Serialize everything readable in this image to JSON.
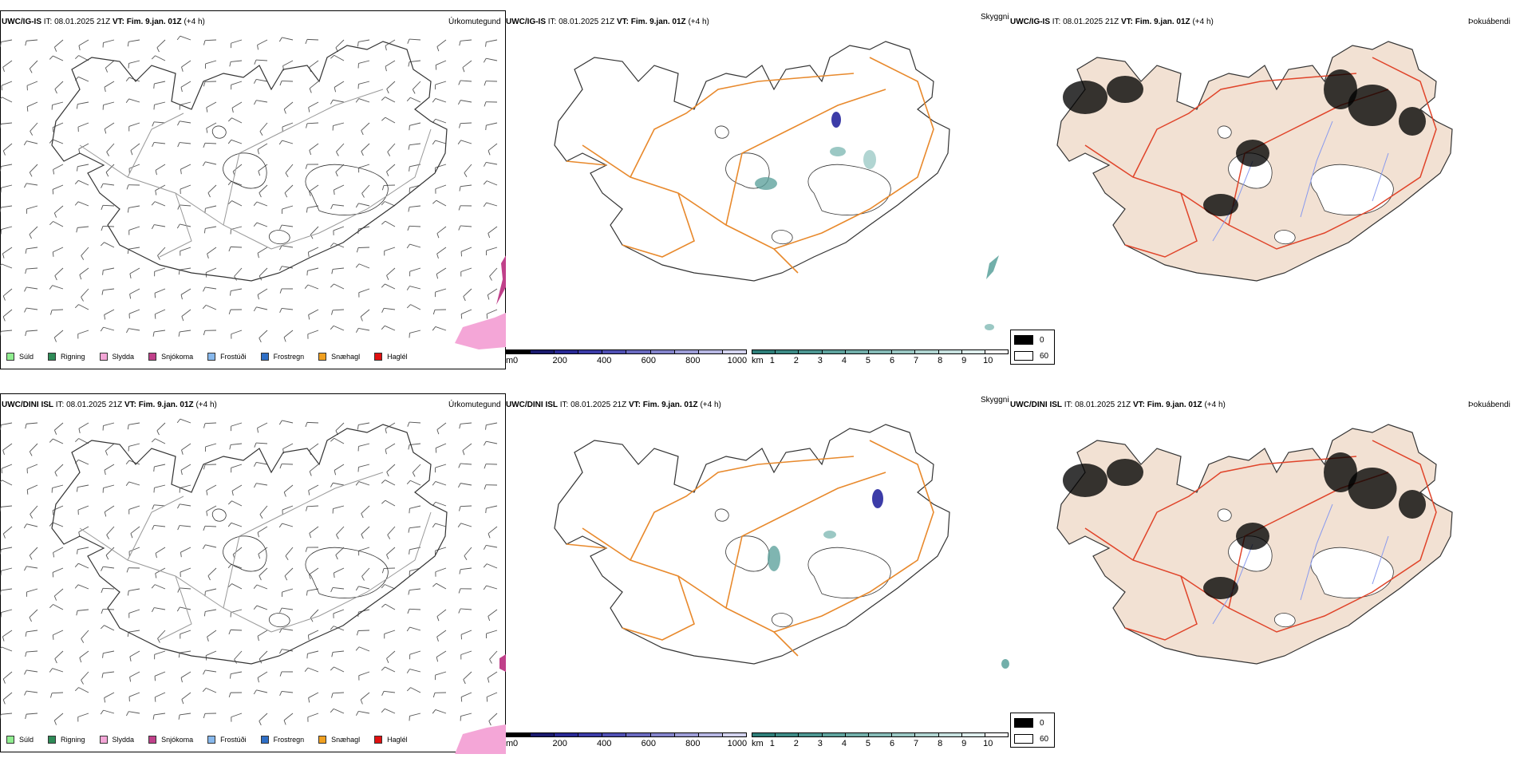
{
  "rows": [
    {
      "model": "UWC/IG-IS",
      "it_label": "IT:",
      "it_value": "08.01.2025 21Z",
      "vt_label": "VT:",
      "vt_value": "Fim. 9.jan. 01Z",
      "lead": "(+4 h)"
    },
    {
      "model": "UWC/DINI ISL",
      "it_label": "IT:",
      "it_value": "08.01.2025 21Z",
      "vt_label": "VT:",
      "vt_value": "Fim. 9.jan. 01Z",
      "lead": "(+4 h)"
    }
  ],
  "fields": {
    "precip": "Úrkomutegund",
    "visibility": "Skyggni",
    "fog": "Þokuábendi"
  },
  "precip_legend": [
    {
      "label": "Súld",
      "color": "#90ee90"
    },
    {
      "label": "Rigning",
      "color": "#2e8b57"
    },
    {
      "label": "Slydda",
      "color": "#f4a6d7"
    },
    {
      "label": "Snjókoma",
      "color": "#c0408a"
    },
    {
      "label": "Frostúði",
      "color": "#87b8ec"
    },
    {
      "label": "Frostregn",
      "color": "#2f6fc6"
    },
    {
      "label": "Snæhagl",
      "color": "#f0a020"
    },
    {
      "label": "Haglél",
      "color": "#e01010"
    }
  ],
  "cloud_base_bar": {
    "unit": "m",
    "ticks": [
      "0",
      "200",
      "400",
      "600",
      "800",
      "1000"
    ],
    "colors": [
      "#000000",
      "#1a1a6e",
      "#2a2a96",
      "#3c3ca8",
      "#5050b4",
      "#6a6ac0",
      "#8484cc",
      "#9e9ed8",
      "#b8b8e4",
      "#d4d4ef"
    ]
  },
  "visibility_bar": {
    "unit": "km",
    "ticks": [
      "1",
      "2",
      "3",
      "4",
      "5",
      "6",
      "7",
      "8",
      "9",
      "10"
    ],
    "colors": [
      "#2e7f7a",
      "#3d8b86",
      "#4d9792",
      "#5fa39e",
      "#72afaa",
      "#86bbb7",
      "#9bc8c4",
      "#b1d5d2",
      "#c8e2e0",
      "#dfefee",
      "#ffffff"
    ]
  },
  "fog_legend": [
    {
      "label": "0",
      "color": "#000000"
    },
    {
      "label": "60",
      "color": "#ffffff"
    }
  ],
  "colors": {
    "coast": "#333333",
    "roads_orange": "#e8892c",
    "roads_red": "#e0442a",
    "land_fog": "#f2e1d3",
    "rivers": "#8899ee",
    "barb": "#555555"
  }
}
